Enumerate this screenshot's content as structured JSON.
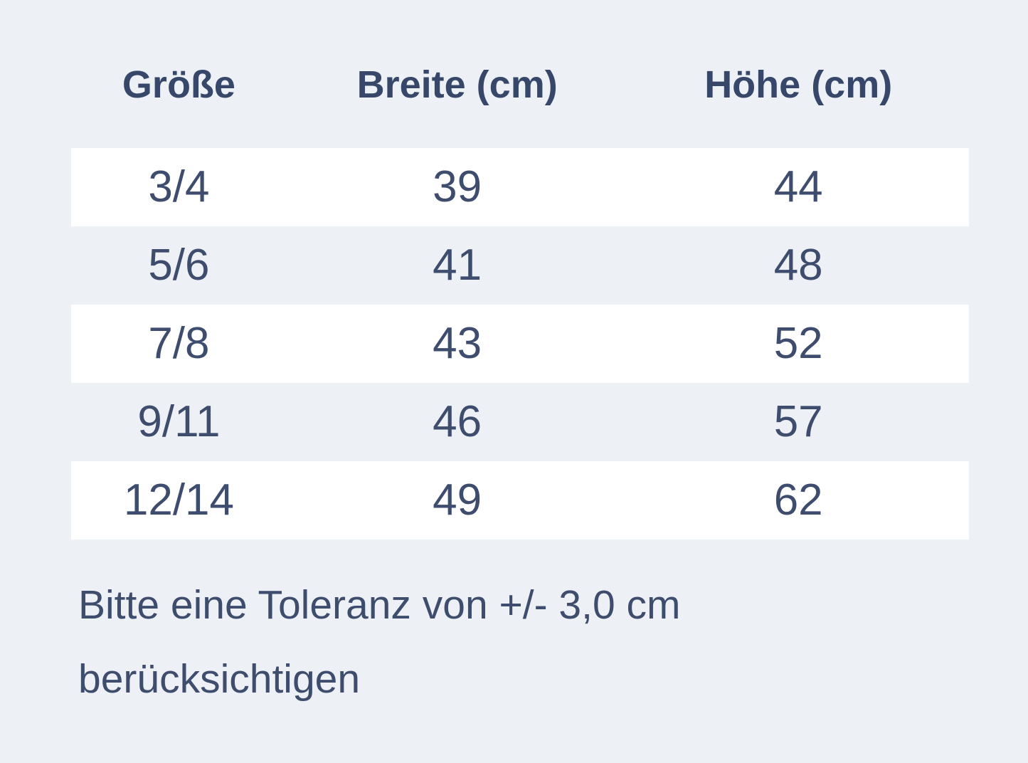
{
  "theme": {
    "bg": "#edf0f5",
    "stripe": "#ffffff",
    "text": "#3e4d6d",
    "heading": "#36476a"
  },
  "table": {
    "headers": [
      "Größe",
      "Breite (cm)",
      "Höhe (cm)"
    ],
    "rows": [
      {
        "size": "3/4",
        "breite": "39",
        "hoehe": "44"
      },
      {
        "size": "5/6",
        "breite": "41",
        "hoehe": "48"
      },
      {
        "size": "7/8",
        "breite": "43",
        "hoehe": "52"
      },
      {
        "size": "9/11",
        "breite": "46",
        "hoehe": "57"
      },
      {
        "size": "12/14",
        "breite": "49",
        "hoehe": "62"
      }
    ]
  },
  "note": "Bitte eine Toleranz von +/- 3,0 cm berücksichtigen",
  "chart_data": {
    "type": "table",
    "columns": [
      "Größe",
      "Breite (cm)",
      "Höhe (cm)"
    ],
    "rows": [
      [
        "3/4",
        39,
        44
      ],
      [
        "5/6",
        41,
        48
      ],
      [
        "7/8",
        43,
        52
      ],
      [
        "9/11",
        46,
        57
      ],
      [
        "12/14",
        49,
        62
      ]
    ],
    "note": "Bitte eine Toleranz von +/- 3,0 cm berücksichtigen",
    "layout_hints": {
      "row_striping": "odd rows white, even rows page background",
      "alignment": "all columns centered",
      "grid": false
    }
  }
}
